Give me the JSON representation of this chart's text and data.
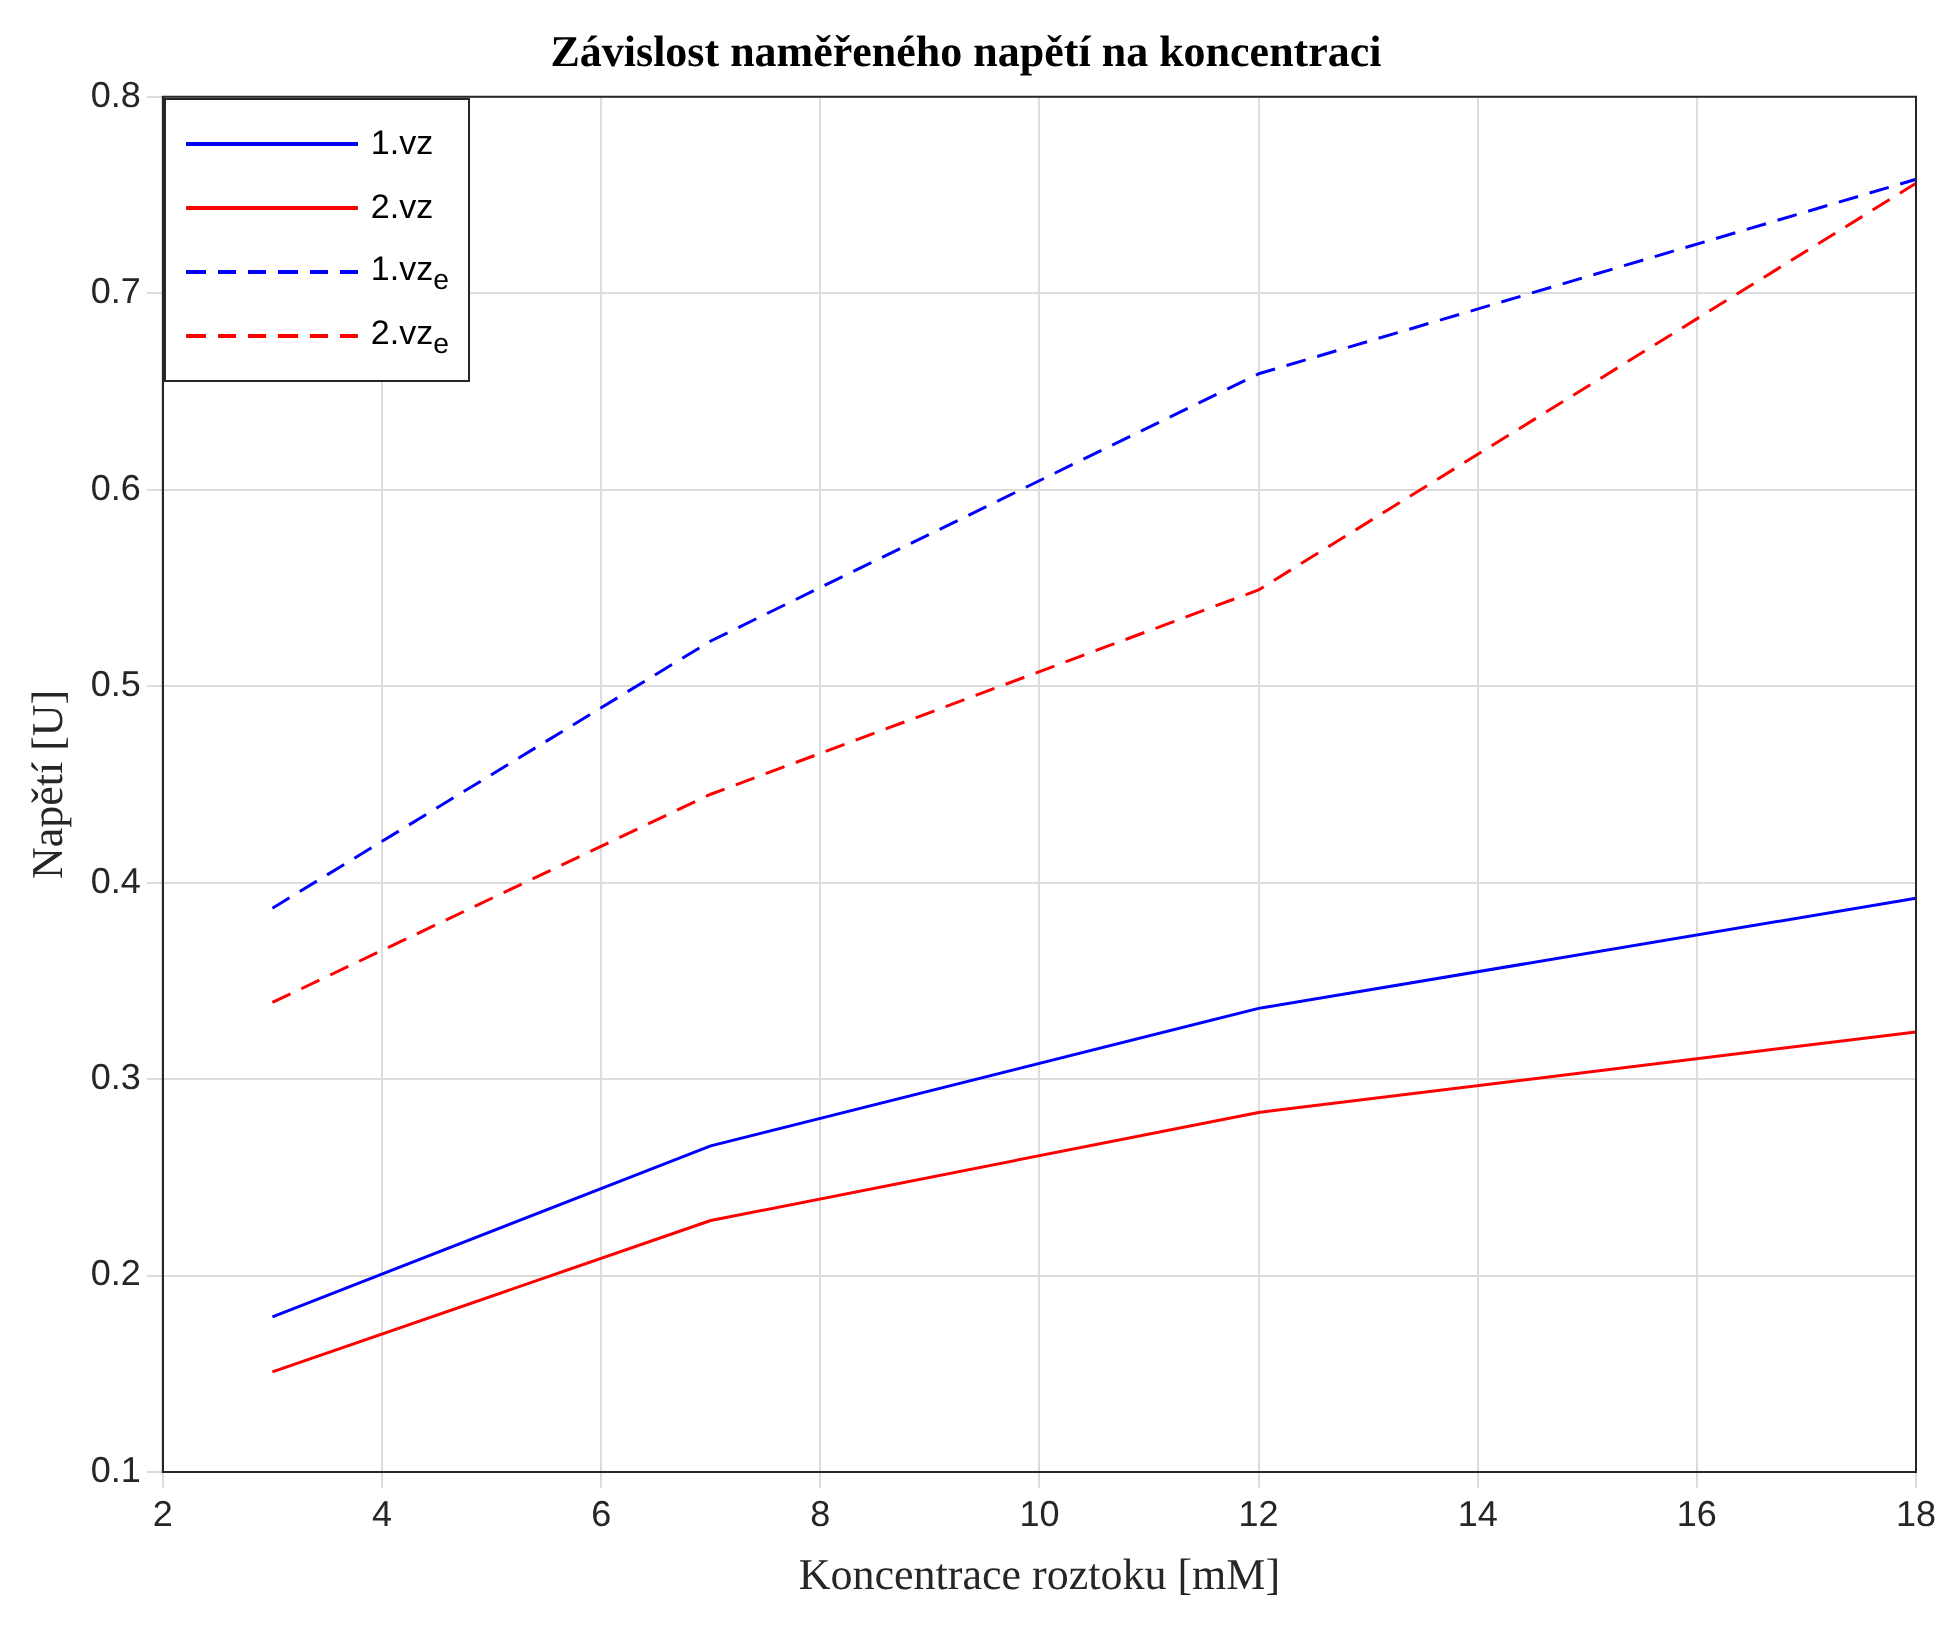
{
  "chart_data": {
    "type": "line",
    "title": "Závislost naměřeného napětí na koncentraci",
    "xlabel": "Koncentrace roztoku [mM]",
    "ylabel": "Napětí [U]",
    "x": [
      3,
      7,
      12,
      18
    ],
    "series": [
      {
        "name": "1.vz",
        "color": "#0000ff",
        "values": [
          0.179,
          0.266,
          0.336,
          0.392
        ],
        "line_style": "solid"
      },
      {
        "name": "2.vz",
        "color": "#ff0000",
        "values": [
          0.151,
          0.228,
          0.283,
          0.324
        ],
        "line_style": "solid"
      },
      {
        "name": "1.vz$_{e}$",
        "color": "#0000ff",
        "values": [
          0.387,
          0.523,
          0.659,
          0.758
        ],
        "line_style": "dashed"
      },
      {
        "name": "2.vz$_{e}$",
        "color": "#ff0000",
        "values": [
          0.339,
          0.445,
          0.549,
          0.756
        ],
        "line_style": "dashed"
      }
    ],
    "xlim": [
      2,
      18
    ],
    "xticks": [
      2,
      4,
      6,
      8,
      10,
      12,
      14,
      16,
      18
    ],
    "ylim": [
      0.1,
      0.8
    ],
    "yticks": [
      0.1,
      0.2,
      0.3,
      0.4,
      0.5,
      0.6,
      0.7,
      0.8
    ],
    "grid": true,
    "legend": "top left",
    "marker": "none"
  }
}
